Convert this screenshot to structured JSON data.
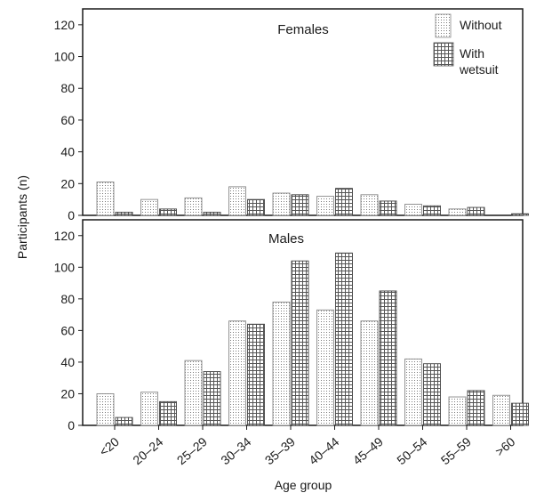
{
  "chart_data": {
    "type": "bar",
    "xlabel": "Age group",
    "ylabel": "Participants (n)",
    "categories": [
      "<20",
      "20–24",
      "25–29",
      "30–34",
      "35–39",
      "40–44",
      "45–49",
      "50–54",
      "55–59",
      ">60"
    ],
    "ylim": [
      0,
      130
    ],
    "yticks": [
      0,
      20,
      40,
      60,
      80,
      100,
      120
    ],
    "grid": false,
    "legend_position": "top-right",
    "legend": [
      {
        "label": "Without",
        "pattern": "dots"
      },
      {
        "label": "With",
        "label2": "wetsuit",
        "pattern": "grid"
      }
    ],
    "panels": [
      {
        "title": "Females",
        "series": [
          {
            "values": [
              21,
              10,
              11,
              18,
              14,
              12,
              13,
              7,
              4,
              0
            ]
          },
          {
            "values": [
              2,
              4,
              2,
              10,
              13,
              17,
              9,
              6,
              5,
              1
            ]
          }
        ]
      },
      {
        "title": "Males",
        "series": [
          {
            "values": [
              20,
              21,
              41,
              66,
              78,
              73,
              66,
              42,
              18,
              19
            ]
          },
          {
            "values": [
              5,
              15,
              34,
              64,
              104,
              109,
              85,
              39,
              22,
              14
            ]
          }
        ]
      }
    ],
    "colors": {
      "axis": "#1a1a1a",
      "bar_fill": "#ffffff",
      "pattern": "#6a6a6a"
    }
  }
}
